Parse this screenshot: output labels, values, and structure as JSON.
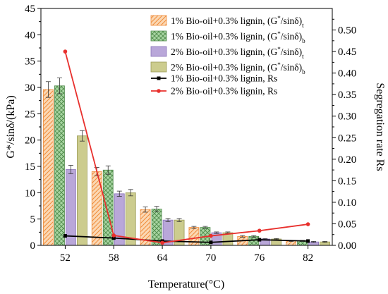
{
  "chart_data": {
    "type": "bar",
    "xlabel": "Temperature(°C)",
    "ylabel": "G*/sinδ/(kPa)",
    "ylabel_right": "Segregation rate Rs",
    "categories": [
      "52",
      "58",
      "64",
      "70",
      "76",
      "82"
    ],
    "ylim": [
      0,
      45
    ],
    "yticks": [
      0,
      5,
      10,
      15,
      20,
      25,
      30,
      35,
      40,
      45
    ],
    "ylim_right": [
      0,
      0.55
    ],
    "yticks_right": [
      0.0,
      0.05,
      0.1,
      0.15,
      0.2,
      0.25,
      0.3,
      0.35,
      0.4,
      0.45,
      0.5
    ],
    "legend_position": "top-right",
    "bar_series": [
      {
        "name": "1% Bio-oil+0.3% lignin, (G*/sinδ)t",
        "legend_main": "1% Bio-oil+0.3% lignin, (G",
        "legend_tail": "/sinδ)",
        "legend_sub": "t",
        "pattern": "hatch-diagonal",
        "fill": "#fbd8b4",
        "stroke": "#f08c3a",
        "values": [
          29.6,
          14.0,
          6.8,
          3.4,
          1.7,
          0.85
        ],
        "errors": [
          1.5,
          0.8,
          0.5,
          0.2,
          0.15,
          0.1
        ]
      },
      {
        "name": "1% Bio-oil+0.3% lignin, (G*/sinδ)b",
        "legend_main": "1% Bio-oil+0.3% lignin, (G",
        "legend_tail": "/sinδ)",
        "legend_sub": "b",
        "pattern": "crosshatch",
        "fill": "#a8d5a2",
        "stroke": "#4f8a4a",
        "values": [
          30.3,
          14.3,
          6.9,
          3.4,
          1.7,
          0.85
        ],
        "errors": [
          1.5,
          0.8,
          0.5,
          0.2,
          0.15,
          0.1
        ]
      },
      {
        "name": "2% Bio-oil+0.3% lignin, (G*/sinδ)t",
        "legend_main": "2% Bio-oil+0.3% lignin, (G",
        "legend_tail": "/sinδ)",
        "legend_sub": "t",
        "pattern": "solid",
        "fill": "#b9a7d9",
        "stroke": "#8a74b8",
        "values": [
          14.4,
          9.8,
          4.8,
          2.4,
          1.2,
          0.65
        ],
        "errors": [
          0.8,
          0.5,
          0.3,
          0.15,
          0.1,
          0.1
        ]
      },
      {
        "name": "2% Bio-oil+0.3% lignin, (G*/sinδ)b",
        "legend_main": "2% Bio-oil+0.3% lignin, (G",
        "legend_tail": "/sinδ)",
        "legend_sub": "b",
        "pattern": "solid",
        "fill": "#cccc8e",
        "stroke": "#9c9c58",
        "values": [
          20.8,
          10.0,
          4.8,
          2.4,
          1.2,
          0.65
        ],
        "errors": [
          1.0,
          0.6,
          0.3,
          0.15,
          0.1,
          0.1
        ]
      }
    ],
    "line_series": [
      {
        "name": "1% Bio-oil+0.3% lignin, Rs",
        "color": "#000000",
        "axis": "right",
        "values": [
          0.022,
          0.017,
          0.01,
          0.007,
          0.013,
          0.01
        ]
      },
      {
        "name": "2% Bio-oil+0.3% lignin, Rs",
        "color": "#e8302d",
        "axis": "right",
        "values": [
          0.45,
          0.023,
          0.006,
          0.022,
          0.034,
          0.049
        ]
      }
    ]
  }
}
